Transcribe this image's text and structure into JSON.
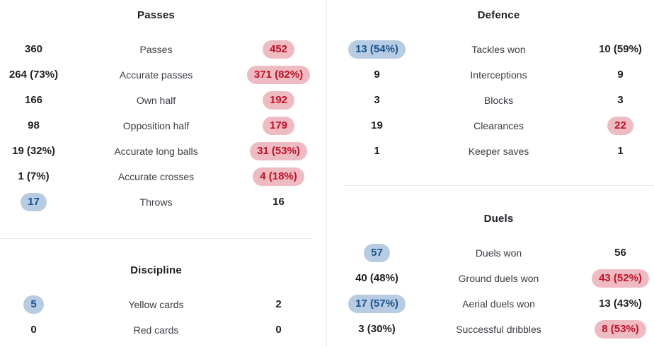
{
  "colors": {
    "home_highlight_bg": "#b7cce2",
    "home_highlight_text": "#17538f",
    "away_highlight_bg": "#efbbc2",
    "away_highlight_text": "#c11028",
    "value_text": "#1e1e24",
    "label_text": "#3b3b44",
    "divider": "#ececec"
  },
  "columns": [
    {
      "sections": [
        {
          "title": "Passes",
          "rows": [
            {
              "home": "360",
              "home_hl": "none",
              "label": "Passes",
              "away": "452",
              "away_hl": "red"
            },
            {
              "home": "264 (73%)",
              "home_hl": "none",
              "label": "Accurate passes",
              "away": "371 (82%)",
              "away_hl": "red"
            },
            {
              "home": "166",
              "home_hl": "none",
              "label": "Own half",
              "away": "192",
              "away_hl": "red"
            },
            {
              "home": "98",
              "home_hl": "none",
              "label": "Opposition half",
              "away": "179",
              "away_hl": "red"
            },
            {
              "home": "19 (32%)",
              "home_hl": "none",
              "label": "Accurate long balls",
              "away": "31 (53%)",
              "away_hl": "red"
            },
            {
              "home": "1 (7%)",
              "home_hl": "none",
              "label": "Accurate crosses",
              "away": "4 (18%)",
              "away_hl": "red"
            },
            {
              "home": "17",
              "home_hl": "blue",
              "label": "Throws",
              "away": "16",
              "away_hl": "none"
            }
          ]
        },
        {
          "title": "Discipline",
          "rows": [
            {
              "home": "5",
              "home_hl": "blue",
              "label": "Yellow cards",
              "away": "2",
              "away_hl": "none"
            },
            {
              "home": "0",
              "home_hl": "none",
              "label": "Red cards",
              "away": "0",
              "away_hl": "none"
            }
          ]
        }
      ]
    },
    {
      "sections": [
        {
          "title": "Defence",
          "rows": [
            {
              "home": "13 (54%)",
              "home_hl": "blue",
              "label": "Tackles won",
              "away": "10 (59%)",
              "away_hl": "none"
            },
            {
              "home": "9",
              "home_hl": "none",
              "label": "Interceptions",
              "away": "9",
              "away_hl": "none"
            },
            {
              "home": "3",
              "home_hl": "none",
              "label": "Blocks",
              "away": "3",
              "away_hl": "none"
            },
            {
              "home": "19",
              "home_hl": "none",
              "label": "Clearances",
              "away": "22",
              "away_hl": "red"
            },
            {
              "home": "1",
              "home_hl": "none",
              "label": "Keeper saves",
              "away": "1",
              "away_hl": "none"
            }
          ]
        },
        {
          "title": "Duels",
          "rows": [
            {
              "home": "57",
              "home_hl": "blue",
              "label": "Duels won",
              "away": "56",
              "away_hl": "none"
            },
            {
              "home": "40 (48%)",
              "home_hl": "none",
              "label": "Ground duels won",
              "away": "43 (52%)",
              "away_hl": "red"
            },
            {
              "home": "17 (57%)",
              "home_hl": "blue",
              "label": "Aerial duels won",
              "away": "13 (43%)",
              "away_hl": "none"
            },
            {
              "home": "3 (30%)",
              "home_hl": "none",
              "label": "Successful dribbles",
              "away": "8 (53%)",
              "away_hl": "red"
            }
          ]
        }
      ]
    }
  ]
}
